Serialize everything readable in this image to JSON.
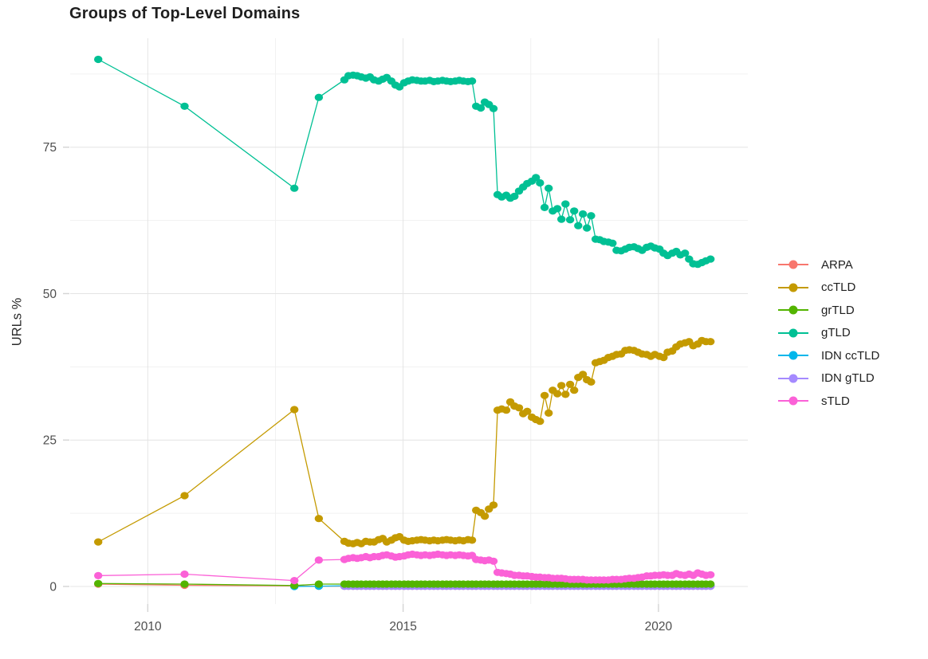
{
  "page": {
    "background": "#ffffff"
  },
  "theme": {
    "grid_major": "#e4e4e4",
    "grid_minor": "#f1f1f1",
    "tick_color": "#d4d4d4",
    "axis_text_color": "#4e4e4e",
    "title_color": "#1f1f1f",
    "legend_text_color": "#1f1f1f"
  },
  "chart_data": {
    "type": "line",
    "title": "Groups of Top-Level Domains",
    "xlabel": "",
    "ylabel": "URLs %",
    "legend_position": "right",
    "legend_title": "",
    "grid": "major+minor",
    "marker": "circle",
    "x_tick_values": [
      2010,
      2015,
      2020
    ],
    "x_tick_labels": [
      "2010",
      "2015",
      "2020"
    ],
    "x_minor": [
      2012.5,
      2017.5
    ],
    "y_tick_values": [
      0,
      25,
      50,
      75
    ],
    "y_tick_labels": [
      "0",
      "25",
      "50",
      "75"
    ],
    "y_minor": [
      12.5,
      37.5,
      62.5,
      87.5
    ],
    "xlim": [
      2008.48,
      2021.75
    ],
    "ylim": [
      -3,
      93.6
    ],
    "draw_order": [
      "ARPA",
      "IDN ccTLD",
      "IDN gTLD",
      "grTLD",
      "ccTLD",
      "gTLD",
      "sTLD"
    ],
    "x": [
      2009.03,
      2010.72,
      2012.87,
      2013.35,
      2013.85,
      2013.93,
      2014.02,
      2014.1,
      2014.18,
      2014.27,
      2014.35,
      2014.43,
      2014.52,
      2014.6,
      2014.68,
      2014.77,
      2014.85,
      2014.93,
      2015.02,
      2015.1,
      2015.18,
      2015.27,
      2015.35,
      2015.43,
      2015.52,
      2015.6,
      2015.68,
      2015.77,
      2015.85,
      2015.93,
      2016.02,
      2016.1,
      2016.18,
      2016.27,
      2016.35,
      2016.43,
      2016.52,
      2016.6,
      2016.68,
      2016.77,
      2016.85,
      2016.93,
      2017.02,
      2017.1,
      2017.18,
      2017.27,
      2017.35,
      2017.43,
      2017.52,
      2017.6,
      2017.68,
      2017.77,
      2017.85,
      2017.93,
      2018.02,
      2018.1,
      2018.18,
      2018.27,
      2018.35,
      2018.43,
      2018.52,
      2018.6,
      2018.68,
      2018.77,
      2018.85,
      2018.93,
      2019.02,
      2019.1,
      2019.18,
      2019.27,
      2019.35,
      2019.43,
      2019.52,
      2019.6,
      2019.68,
      2019.77,
      2019.85,
      2019.93,
      2020.02,
      2020.1,
      2020.18,
      2020.27,
      2020.35,
      2020.43,
      2020.52,
      2020.6,
      2020.68,
      2020.77,
      2020.85,
      2020.93,
      2021.02
    ],
    "series": [
      {
        "name": "ARPA",
        "color": "#F8766D",
        "values": [
          0.4,
          0.2,
          0.1,
          0.05,
          0.05,
          0.05,
          0.05,
          0.05,
          0.05,
          0.05,
          0.05,
          0.05,
          0.05,
          0.05,
          0.05,
          0.05,
          0.05,
          0.05,
          0.05,
          0.05,
          0.05,
          0.05,
          0.05,
          0.05,
          0.05,
          0.05,
          0.05,
          0.05,
          0.05,
          0.05,
          0.05,
          0.05,
          0.05,
          0.05,
          0.05,
          0.05,
          0.05,
          0.05,
          0.05,
          0.05,
          0.05,
          0.05,
          0.05,
          0.05,
          0.05,
          0.05,
          0.05,
          0.05,
          0.05,
          0.05,
          0.05,
          0.05,
          0.05,
          0.05,
          0.05,
          0.05,
          0.05,
          0.05,
          0.05,
          0.05,
          0.05,
          0.05,
          0.05,
          0.05,
          0.05,
          0.05,
          0.05,
          0.05,
          0.05,
          0.05,
          0.05,
          0.05,
          0.05,
          0.05,
          0.05,
          0.05,
          0.05,
          0.05,
          0.05,
          0.05,
          0.05,
          0.05,
          0.05,
          0.05,
          0.05,
          0.05,
          0.05,
          0.05,
          0.05,
          0.05,
          0.05
        ]
      },
      {
        "name": "ccTLD",
        "color": "#C49A00",
        "values": [
          7.6,
          15.5,
          30.2,
          11.6,
          7.7,
          7.4,
          7.3,
          7.5,
          7.3,
          7.7,
          7.6,
          7.6,
          8.0,
          8.2,
          7.6,
          7.9,
          8.3,
          8.5,
          7.9,
          7.7,
          7.8,
          7.9,
          8.0,
          7.9,
          7.8,
          7.9,
          7.8,
          7.9,
          8.0,
          7.9,
          7.8,
          7.9,
          7.8,
          8.0,
          7.9,
          13.0,
          12.6,
          12.0,
          13.2,
          13.9,
          30.1,
          30.3,
          30.1,
          31.5,
          30.8,
          30.5,
          29.5,
          29.9,
          28.9,
          28.5,
          28.2,
          32.6,
          29.6,
          33.5,
          32.9,
          34.3,
          32.8,
          34.5,
          33.5,
          35.7,
          36.2,
          35.3,
          34.9,
          38.2,
          38.4,
          38.6,
          39.1,
          39.3,
          39.6,
          39.7,
          40.3,
          40.4,
          40.3,
          40.0,
          39.7,
          39.6,
          39.3,
          39.6,
          39.3,
          39.1,
          40.0,
          40.2,
          40.9,
          41.4,
          41.6,
          41.8,
          41.1,
          41.4,
          42.0,
          41.8,
          41.8
        ]
      },
      {
        "name": "grTLD",
        "color": "#53B400",
        "values": [
          0.5,
          0.4,
          0.15,
          0.4,
          0.4,
          0.4,
          0.4,
          0.4,
          0.4,
          0.4,
          0.4,
          0.4,
          0.4,
          0.4,
          0.4,
          0.4,
          0.4,
          0.4,
          0.4,
          0.4,
          0.4,
          0.4,
          0.4,
          0.4,
          0.4,
          0.4,
          0.4,
          0.4,
          0.4,
          0.4,
          0.4,
          0.4,
          0.4,
          0.4,
          0.4,
          0.4,
          0.4,
          0.4,
          0.4,
          0.4,
          0.4,
          0.4,
          0.4,
          0.4,
          0.4,
          0.4,
          0.4,
          0.4,
          0.4,
          0.4,
          0.4,
          0.4,
          0.4,
          0.4,
          0.4,
          0.4,
          0.4,
          0.4,
          0.4,
          0.4,
          0.4,
          0.4,
          0.4,
          0.4,
          0.4,
          0.4,
          0.4,
          0.4,
          0.4,
          0.4,
          0.4,
          0.4,
          0.4,
          0.4,
          0.4,
          0.4,
          0.4,
          0.4,
          0.4,
          0.4,
          0.4,
          0.4,
          0.4,
          0.4,
          0.4,
          0.4,
          0.4,
          0.4,
          0.4,
          0.4,
          0.4
        ]
      },
      {
        "name": "gTLD",
        "color": "#00C094",
        "values": [
          90,
          82,
          68,
          83.5,
          86.5,
          87.2,
          87.3,
          87.2,
          87.0,
          86.8,
          87.0,
          86.5,
          86.3,
          86.6,
          86.9,
          86.3,
          85.6,
          85.3,
          86.0,
          86.3,
          86.5,
          86.4,
          86.3,
          86.3,
          86.4,
          86.2,
          86.3,
          86.4,
          86.3,
          86.2,
          86.3,
          86.4,
          86.3,
          86.2,
          86.3,
          82.0,
          81.7,
          82.7,
          82.3,
          81.6,
          66.9,
          66.5,
          66.8,
          66.3,
          66.6,
          67.5,
          68.2,
          68.8,
          69.2,
          69.8,
          68.9,
          64.7,
          68.0,
          64.1,
          64.5,
          62.7,
          65.3,
          62.6,
          64.1,
          61.6,
          63.6,
          61.2,
          63.3,
          59.3,
          59.2,
          58.9,
          58.8,
          58.6,
          57.4,
          57.3,
          57.6,
          57.9,
          58.0,
          57.7,
          57.4,
          57.9,
          58.1,
          57.8,
          57.6,
          56.9,
          56.5,
          56.9,
          57.2,
          56.6,
          56.9,
          55.9,
          55.1,
          55.0,
          55.3,
          55.6,
          55.9
        ]
      },
      {
        "name": "IDN ccTLD",
        "color": "#00B6EB",
        "values": [
          null,
          null,
          0.0,
          0.05,
          0.12,
          0.12,
          0.12,
          0.12,
          0.12,
          0.12,
          0.12,
          0.12,
          0.12,
          0.12,
          0.12,
          0.12,
          0.12,
          0.12,
          0.12,
          0.12,
          0.12,
          0.12,
          0.12,
          0.12,
          0.12,
          0.12,
          0.12,
          0.12,
          0.12,
          0.12,
          0.12,
          0.12,
          0.12,
          0.12,
          0.12,
          0.12,
          0.12,
          0.12,
          0.12,
          0.12,
          0.12,
          0.12,
          0.12,
          0.12,
          0.12,
          0.12,
          0.12,
          0.12,
          0.12,
          0.12,
          0.12,
          0.12,
          0.12,
          0.12,
          0.12,
          0.12,
          0.12,
          0.12,
          0.12,
          0.12,
          0.12,
          0.12,
          0.12,
          0.12,
          0.12,
          0.12,
          0.12,
          0.12,
          0.12,
          0.12,
          0.12,
          0.12,
          0.12,
          0.12,
          0.12,
          0.12,
          0.12,
          0.12,
          0.12,
          0.12,
          0.12,
          0.12,
          0.12,
          0.12,
          0.12,
          0.12,
          0.12,
          0.12,
          0.12,
          0.12,
          0.12
        ]
      },
      {
        "name": "IDN gTLD",
        "color": "#A58AFF",
        "values": [
          null,
          null,
          null,
          null,
          0.02,
          0.02,
          0.02,
          0.02,
          0.02,
          0.02,
          0.02,
          0.02,
          0.02,
          0.02,
          0.02,
          0.02,
          0.02,
          0.02,
          0.02,
          0.02,
          0.02,
          0.02,
          0.02,
          0.02,
          0.02,
          0.02,
          0.02,
          0.02,
          0.02,
          0.02,
          0.02,
          0.02,
          0.02,
          0.02,
          0.02,
          0.02,
          0.02,
          0.02,
          0.02,
          0.02,
          0.02,
          0.02,
          0.02,
          0.02,
          0.02,
          0.02,
          0.02,
          0.02,
          0.02,
          0.02,
          0.02,
          0.02,
          0.02,
          0.02,
          0.02,
          0.02,
          0.02,
          0.02,
          0.02,
          0.02,
          0.02,
          0.02,
          0.02,
          0.02,
          0.02,
          0.02,
          0.02,
          0.02,
          0.02,
          0.02,
          0.02,
          0.02,
          0.02,
          0.02,
          0.02,
          0.02,
          0.02,
          0.02,
          0.02,
          0.02,
          0.02,
          0.02,
          0.02,
          0.02,
          0.02,
          0.02,
          0.02,
          0.02,
          0.02,
          0.02,
          0.02
        ]
      },
      {
        "name": "sTLD",
        "color": "#FB61D7",
        "values": [
          1.85,
          2.1,
          1.0,
          4.5,
          4.6,
          4.8,
          4.9,
          4.8,
          4.9,
          5.1,
          4.9,
          5.1,
          5.1,
          5.3,
          5.4,
          5.2,
          5.0,
          5.1,
          5.2,
          5.4,
          5.5,
          5.4,
          5.3,
          5.4,
          5.3,
          5.4,
          5.5,
          5.4,
          5.3,
          5.4,
          5.3,
          5.4,
          5.3,
          5.2,
          5.3,
          4.6,
          4.5,
          4.4,
          4.5,
          4.3,
          2.4,
          2.3,
          2.2,
          2.1,
          1.9,
          1.9,
          1.8,
          1.8,
          1.7,
          1.6,
          1.6,
          1.5,
          1.5,
          1.4,
          1.4,
          1.4,
          1.3,
          1.2,
          1.2,
          1.2,
          1.2,
          1.1,
          1.1,
          1.1,
          1.1,
          1.1,
          1.1,
          1.2,
          1.2,
          1.2,
          1.3,
          1.4,
          1.4,
          1.5,
          1.6,
          1.8,
          1.8,
          1.9,
          1.9,
          2.0,
          1.9,
          1.9,
          2.2,
          2.0,
          1.9,
          2.1,
          1.9,
          2.3,
          2.1,
          1.9,
          2.0
        ]
      }
    ]
  }
}
